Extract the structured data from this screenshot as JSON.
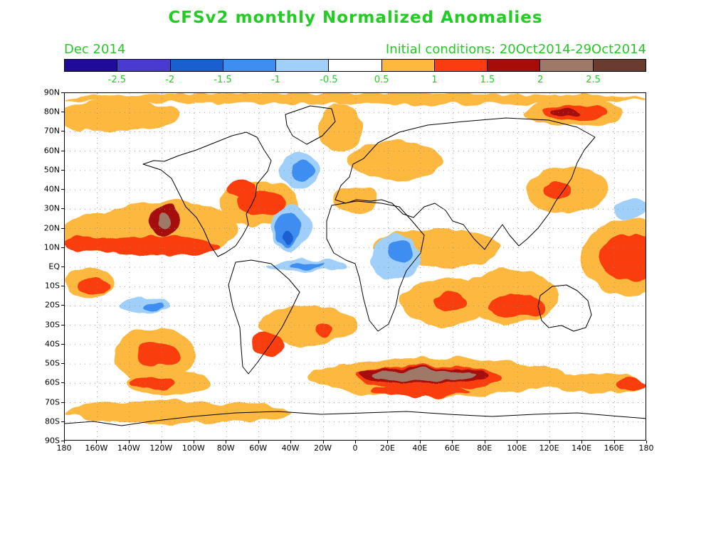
{
  "title": "CFSv2 monthly Normalized Anomalies",
  "subtitle_left": "Dec 2014",
  "subtitle_right": "Initial conditions: 20Oct2014-29Oct2014",
  "colors": {
    "text_green": "#22cc22",
    "scale": [
      "#1f0a9a",
      "#4a3bd0",
      "#1a5fd0",
      "#3d8ef0",
      "#a0d0fa",
      "#ffffff",
      "#fdb840",
      "#fa3c10",
      "#a60c08",
      "#a07868",
      "#6a3c30"
    ]
  },
  "colorbar": {
    "labels": [
      "-2.5",
      "-2",
      "-1.5",
      "-1",
      "-0.5",
      "0.5",
      "1",
      "1.5",
      "2",
      "2.5"
    ]
  },
  "map": {
    "lat_labels": [
      "90N",
      "80N",
      "70N",
      "60N",
      "50N",
      "40N",
      "30N",
      "20N",
      "10N",
      "EQ",
      "10S",
      "20S",
      "30S",
      "40S",
      "50S",
      "60S",
      "70S",
      "80S",
      "90S"
    ],
    "lon_labels": [
      "180",
      "160W",
      "140W",
      "120W",
      "100W",
      "80W",
      "60W",
      "40W",
      "20W",
      "0",
      "20E",
      "40E",
      "60E",
      "80E",
      "100E",
      "120E",
      "140E",
      "160E",
      "180"
    ],
    "lat_range": [
      -90,
      90
    ],
    "lon_range": [
      -180,
      180
    ],
    "gridlines": "dotted",
    "anomaly_regions": [
      {
        "lon": -118,
        "lat": 20,
        "rx": 45,
        "ry": 14,
        "level": 1
      },
      {
        "lon": -125,
        "lat": 11,
        "rx": 40,
        "ry": 5,
        "level": 2
      },
      {
        "lon": -118,
        "lat": 24,
        "rx": 10,
        "ry": 8,
        "level": 3
      },
      {
        "lon": -119,
        "lat": 24,
        "rx": 4,
        "ry": 4,
        "level": 4
      },
      {
        "lon": -160,
        "lat": 18,
        "rx": 22,
        "ry": 10,
        "level": 1
      },
      {
        "lon": -165,
        "lat": 12,
        "rx": 14,
        "ry": 4,
        "level": 2
      },
      {
        "lon": -165,
        "lat": -8,
        "rx": 15,
        "ry": 8,
        "level": 1
      },
      {
        "lon": -162,
        "lat": -10,
        "rx": 10,
        "ry": 4,
        "level": 2
      },
      {
        "lon": -125,
        "lat": -45,
        "rx": 25,
        "ry": 14,
        "level": 1
      },
      {
        "lon": -122,
        "lat": -45,
        "rx": 13,
        "ry": 6,
        "level": 2
      },
      {
        "lon": -115,
        "lat": -60,
        "rx": 26,
        "ry": 6,
        "level": 1
      },
      {
        "lon": -125,
        "lat": -60,
        "rx": 14,
        "ry": 3,
        "level": 2
      },
      {
        "lon": -60,
        "lat": 33,
        "rx": 25,
        "ry": 12,
        "level": 1
      },
      {
        "lon": -58,
        "lat": 33,
        "rx": 15,
        "ry": 6,
        "level": 2
      },
      {
        "lon": -70,
        "lat": 40,
        "rx": 9,
        "ry": 5,
        "level": 2
      },
      {
        "lon": 25,
        "lat": 55,
        "rx": 30,
        "ry": 10,
        "level": 1
      },
      {
        "lon": 0,
        "lat": 35,
        "rx": 14,
        "ry": 7,
        "level": 1
      },
      {
        "lon": -10,
        "lat": 72,
        "rx": 14,
        "ry": 12,
        "level": 1
      },
      {
        "lon": 50,
        "lat": 10,
        "rx": 40,
        "ry": 10,
        "level": 1
      },
      {
        "lon": 55,
        "lat": -18,
        "rx": 28,
        "ry": 12,
        "level": 1
      },
      {
        "lon": 58,
        "lat": -18,
        "rx": 10,
        "ry": 5,
        "level": 2
      },
      {
        "lon": 95,
        "lat": -15,
        "rx": 30,
        "ry": 14,
        "level": 1
      },
      {
        "lon": 100,
        "lat": -20,
        "rx": 18,
        "ry": 6,
        "level": 2
      },
      {
        "lon": 170,
        "lat": 5,
        "rx": 30,
        "ry": 20,
        "level": 1
      },
      {
        "lon": 170,
        "lat": 5,
        "rx": 20,
        "ry": 12,
        "level": 2
      },
      {
        "lon": 135,
        "lat": 80,
        "rx": 30,
        "ry": 7,
        "level": 1
      },
      {
        "lon": 135,
        "lat": 80,
        "rx": 20,
        "ry": 4,
        "level": 2
      },
      {
        "lon": 130,
        "lat": 80,
        "rx": 10,
        "ry": 2,
        "level": 3
      },
      {
        "lon": 130,
        "lat": 40,
        "rx": 25,
        "ry": 12,
        "level": 1
      },
      {
        "lon": 125,
        "lat": 40,
        "rx": 8,
        "ry": 5,
        "level": 2
      },
      {
        "lon": -30,
        "lat": -30,
        "rx": 30,
        "ry": 10,
        "level": 1
      },
      {
        "lon": -20,
        "lat": -32,
        "rx": 6,
        "ry": 4,
        "level": 2
      },
      {
        "lon": -55,
        "lat": -40,
        "rx": 10,
        "ry": 6,
        "level": 2
      },
      {
        "lon": 50,
        "lat": -57,
        "rx": 80,
        "ry": 10,
        "level": 1
      },
      {
        "lon": 45,
        "lat": -57,
        "rx": 45,
        "ry": 6,
        "level": 2
      },
      {
        "lon": 42,
        "lat": -56,
        "rx": 40,
        "ry": 4,
        "level": 3
      },
      {
        "lon": 42,
        "lat": -56,
        "rx": 32,
        "ry": 3,
        "level": 4
      },
      {
        "lon": 40,
        "lat": -64,
        "rx": 30,
        "ry": 3,
        "level": 2
      },
      {
        "lon": 150,
        "lat": -60,
        "rx": 30,
        "ry": 5,
        "level": 1
      },
      {
        "lon": 170,
        "lat": -60,
        "rx": 10,
        "ry": 3,
        "level": 2
      },
      {
        "lon": -150,
        "lat": 78,
        "rx": 40,
        "ry": 8,
        "level": 1
      },
      {
        "lon": 0,
        "lat": 87,
        "rx": 180,
        "ry": 3,
        "level": 1
      },
      {
        "lon": -110,
        "lat": -75,
        "rx": 70,
        "ry": 6,
        "level": 1
      },
      {
        "lon": -35,
        "lat": 50,
        "rx": 12,
        "ry": 9,
        "level": -1
      },
      {
        "lon": -33,
        "lat": 50,
        "rx": 7,
        "ry": 5,
        "level": -2
      },
      {
        "lon": -40,
        "lat": 20,
        "rx": 12,
        "ry": 12,
        "level": -1
      },
      {
        "lon": -42,
        "lat": 19,
        "rx": 8,
        "ry": 9,
        "level": -2
      },
      {
        "lon": -42,
        "lat": 15,
        "rx": 4,
        "ry": 4,
        "level": -3
      },
      {
        "lon": -30,
        "lat": 1,
        "rx": 25,
        "ry": 3,
        "level": -1
      },
      {
        "lon": -30,
        "lat": 1,
        "rx": 10,
        "ry": 1.5,
        "level": -2
      },
      {
        "lon": 25,
        "lat": 5,
        "rx": 15,
        "ry": 12,
        "level": -1
      },
      {
        "lon": 28,
        "lat": 8,
        "rx": 8,
        "ry": 6,
        "level": -2
      },
      {
        "lon": -130,
        "lat": -20,
        "rx": 15,
        "ry": 4,
        "level": -1
      },
      {
        "lon": -125,
        "lat": -21,
        "rx": 6,
        "ry": 2,
        "level": -2
      },
      {
        "lon": 170,
        "lat": 30,
        "rx": 10,
        "ry": 5,
        "level": -1
      }
    ]
  }
}
